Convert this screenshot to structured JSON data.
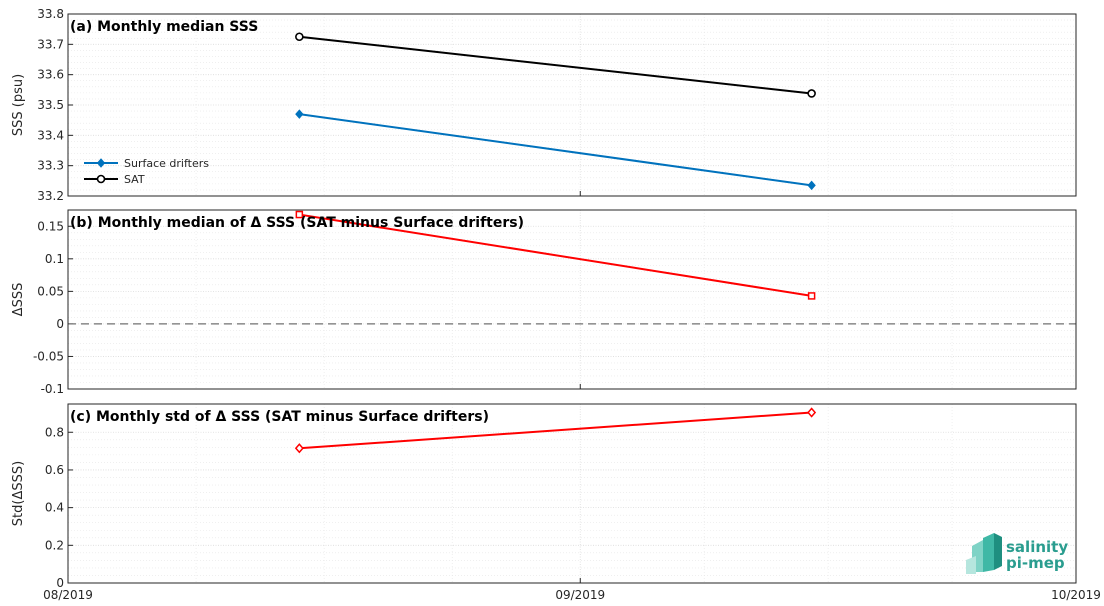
{
  "chart_data": [
    {
      "id": "a",
      "type": "line",
      "title": "(a) Monthly median SSS",
      "ylabel": "SSS (psu)",
      "ylim": [
        33.2,
        33.8
      ],
      "yticks": [
        33.2,
        33.3,
        33.4,
        33.5,
        33.6,
        33.7,
        33.8
      ],
      "ytick_labels": [
        "33.2",
        "33.3",
        "33.4",
        "33.5",
        "33.6",
        "33.7",
        "33.8"
      ],
      "grid": true,
      "legend": "left",
      "series": [
        {
          "name": "Surface drifters",
          "color": "#0072bd",
          "marker": "diamond-filled",
          "x": [
            "2019-08-15",
            "2019-09-15"
          ],
          "y": [
            33.47,
            33.235
          ]
        },
        {
          "name": "SAT",
          "color": "#000000",
          "marker": "circle-open",
          "x": [
            "2019-08-15",
            "2019-09-15"
          ],
          "y": [
            33.725,
            33.538
          ]
        }
      ]
    },
    {
      "id": "b",
      "type": "line",
      "title": "(b) Monthly median of Δ SSS (SAT minus Surface drifters)",
      "ylabel": "ΔSSS",
      "ylim": [
        -0.1,
        0.175
      ],
      "yticks": [
        -0.1,
        -0.05,
        0,
        0.05,
        0.1,
        0.15
      ],
      "ytick_labels": [
        "-0.1",
        "-0.05",
        "0",
        "0.05",
        "0.1",
        "0.15"
      ],
      "grid": true,
      "zero_line": "dashed",
      "series": [
        {
          "color": "#ff0000",
          "marker": "square-open",
          "x": [
            "2019-08-15",
            "2019-09-15"
          ],
          "y": [
            0.168,
            0.043
          ]
        }
      ]
    },
    {
      "id": "c",
      "type": "line",
      "title": "(c) Monthly std of Δ SSS (SAT minus Surface drifters)",
      "ylabel": "Std(ΔSSS)",
      "ylim": [
        0,
        0.95
      ],
      "yticks": [
        0,
        0.2,
        0.4,
        0.6,
        0.8
      ],
      "ytick_labels": [
        "0",
        "0.2",
        "0.4",
        "0.6",
        "0.8"
      ],
      "grid": true,
      "series": [
        {
          "color": "#ff0000",
          "marker": "diamond-open",
          "x": [
            "2019-08-15",
            "2019-09-15"
          ],
          "y": [
            0.715,
            0.905
          ]
        }
      ]
    }
  ],
  "x_axis": {
    "range": [
      "2019-08-01",
      "2019-10-01"
    ],
    "ticks": [
      "2019-08-01",
      "2019-09-01",
      "2019-10-01"
    ],
    "tick_labels": [
      "08/2019",
      "09/2019",
      "10/2019"
    ]
  },
  "logo": {
    "line1": "salinity",
    "line2": "pi-mep"
  }
}
